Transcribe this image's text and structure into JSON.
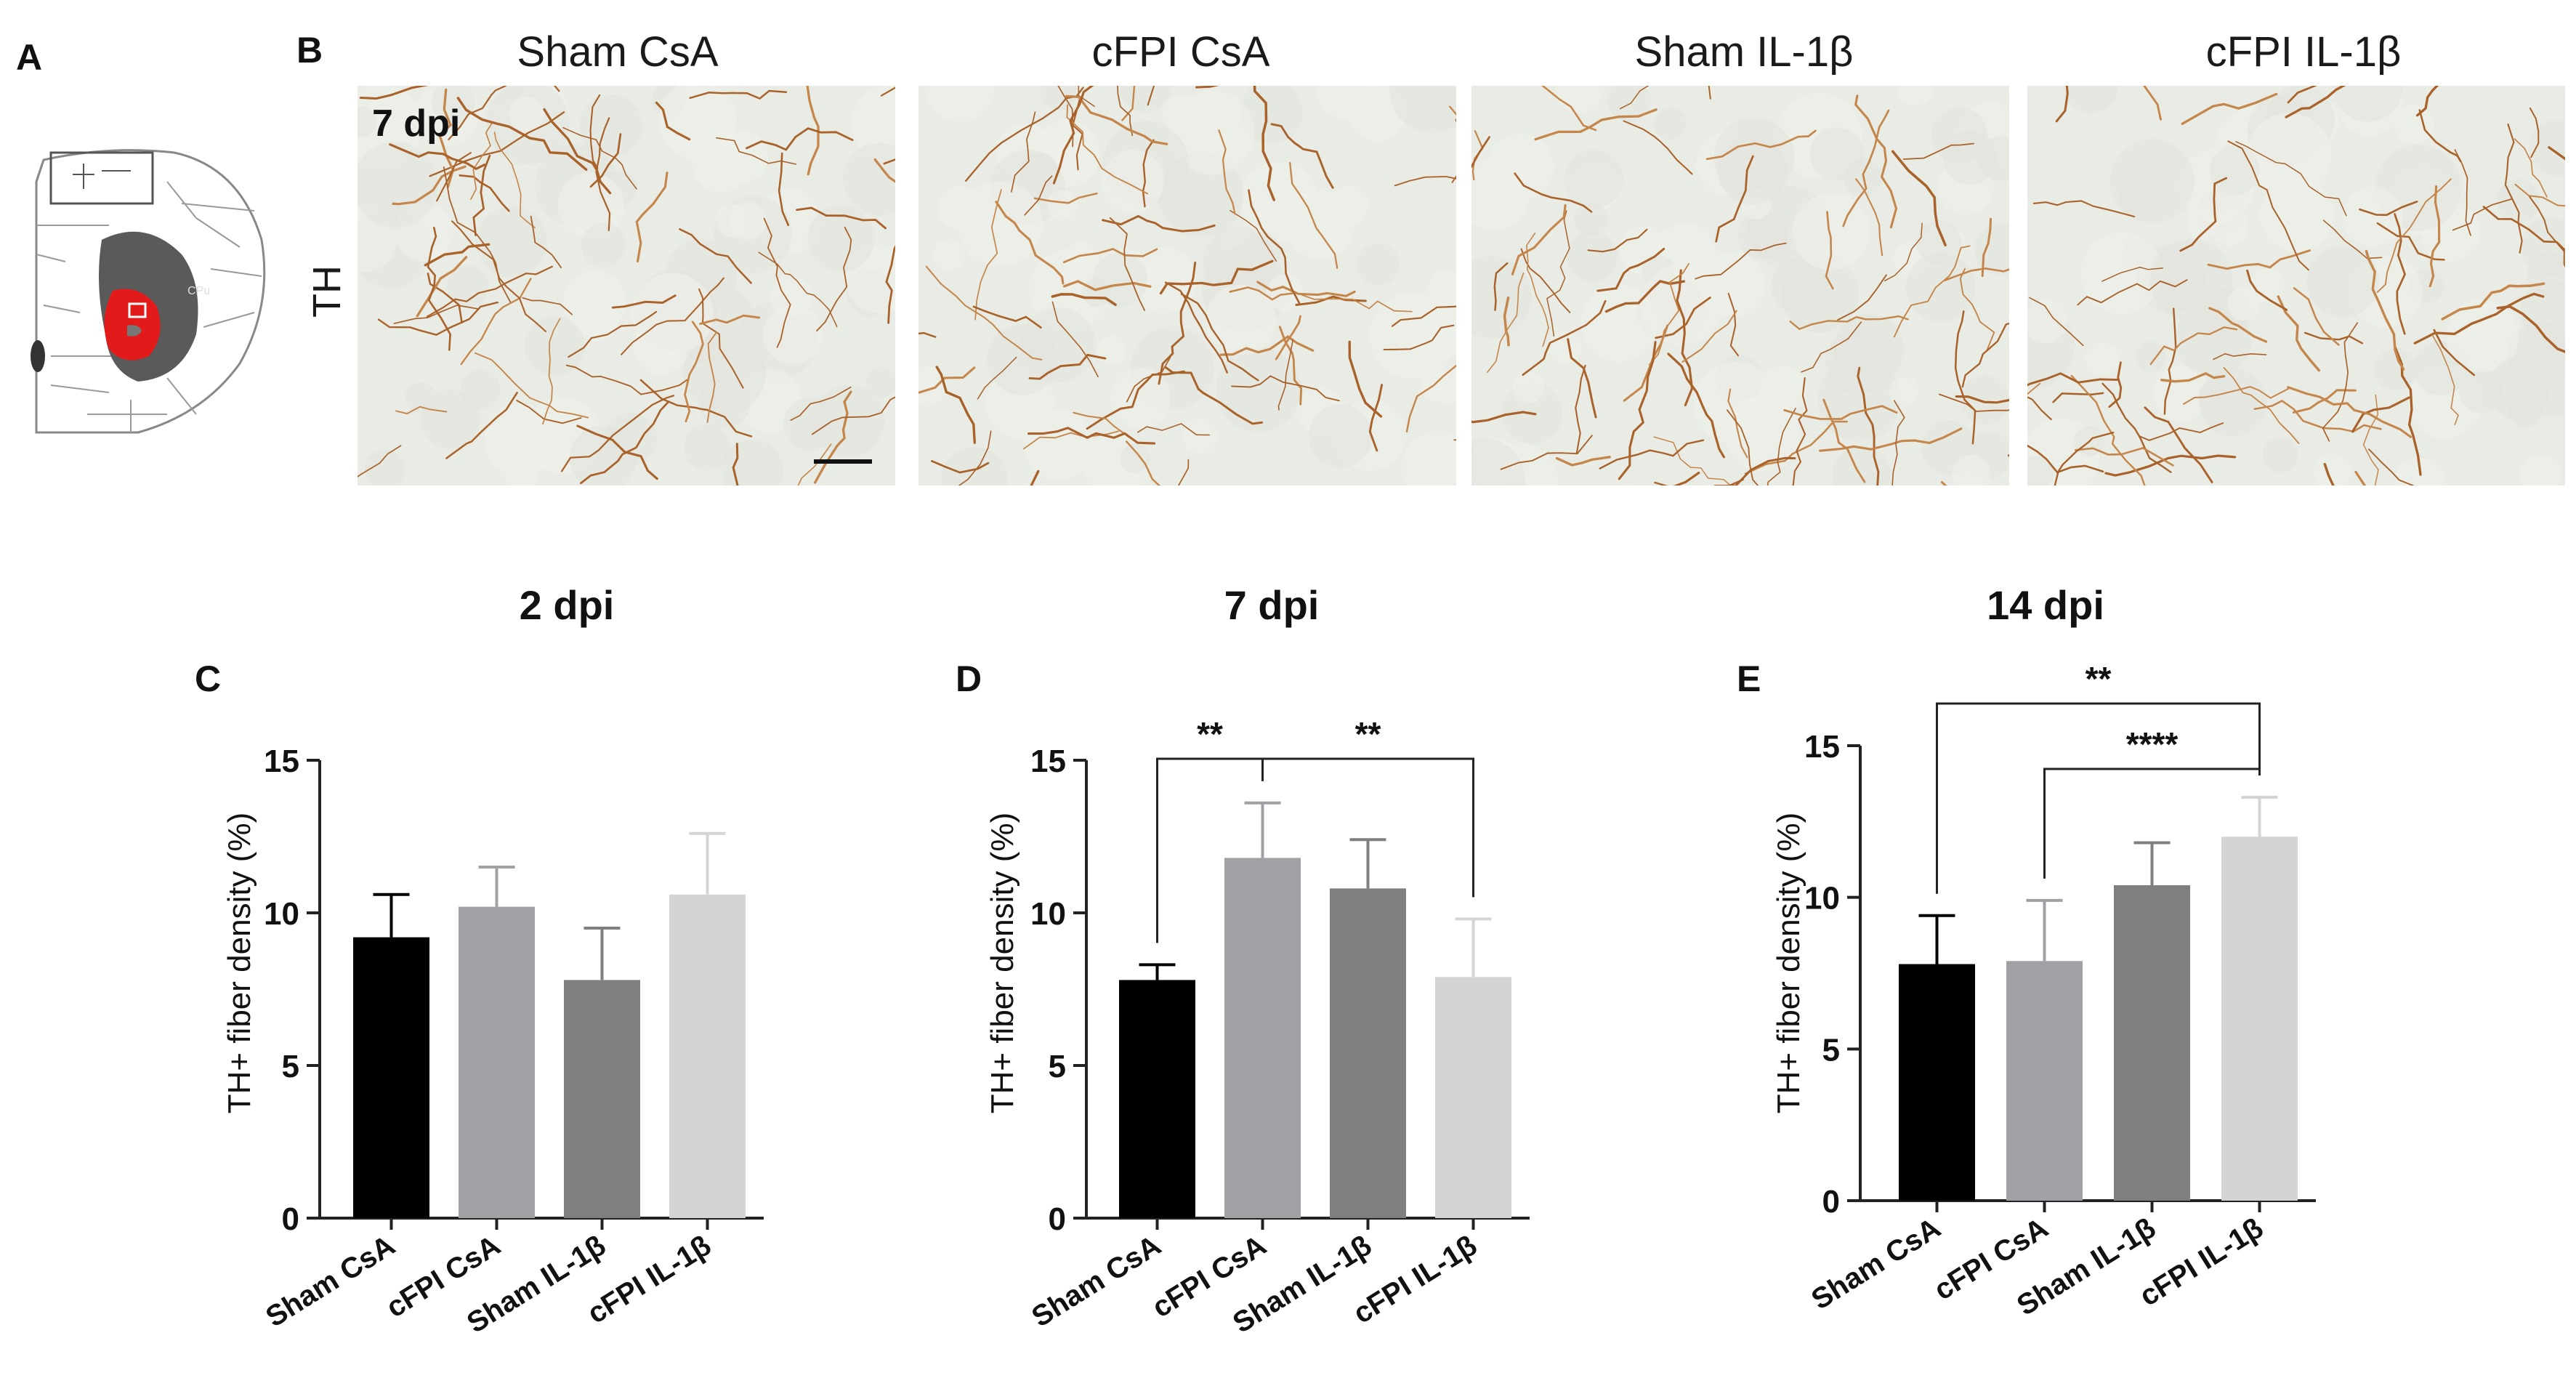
{
  "panels": {
    "A": "A",
    "B": "B",
    "C": "C",
    "D": "D",
    "E": "E"
  },
  "micrographs": {
    "row_label": "TH",
    "time_label": "7 dpi",
    "columns": [
      "Sham CsA",
      "cFPI CsA",
      "Sham IL-1β",
      "cFPI  IL-1β"
    ]
  },
  "atlas": {
    "small_label": "CPu",
    "roi_color": "#e31a1a",
    "region_color": "#5a5a5a"
  },
  "colors": {
    "Sham CsA": "#000000",
    "cFPI CsA": "#a1a1a5",
    "Sham IL-1β": "#7f7f7f",
    "cFPI IL-1β": "#d4d4d4"
  },
  "chart_data": [
    {
      "panel": "C",
      "type": "bar",
      "title": "2 dpi",
      "ylabel": "TH+ fiber density (%)",
      "ylim": [
        0,
        15
      ],
      "yticks": [
        0,
        5,
        10,
        15
      ],
      "categories": [
        "Sham CsA",
        "cFPI CsA",
        "Sham IL-1β",
        "cFPI IL-1β"
      ],
      "values": [
        9.2,
        10.2,
        7.8,
        10.6
      ],
      "errors": [
        1.4,
        1.3,
        1.7,
        2.0
      ],
      "significance": []
    },
    {
      "panel": "D",
      "type": "bar",
      "title": "7 dpi",
      "ylabel": "TH+ fiber density (%)",
      "ylim": [
        0,
        15
      ],
      "yticks": [
        0,
        5,
        10,
        15
      ],
      "categories": [
        "Sham CsA",
        "cFPI CsA",
        "Sham IL-1β",
        "cFPI IL-1β"
      ],
      "values": [
        7.8,
        11.8,
        10.8,
        7.9
      ],
      "errors": [
        0.5,
        1.8,
        1.6,
        1.9
      ],
      "significance": [
        {
          "from": 0,
          "to": 1,
          "label": "**"
        },
        {
          "from": 1,
          "to": 3,
          "label": "**"
        }
      ]
    },
    {
      "panel": "E",
      "type": "bar",
      "title": "14 dpi",
      "ylabel": "TH+ fiber density (%)",
      "ylim": [
        0,
        15
      ],
      "yticks": [
        0,
        5,
        10,
        15
      ],
      "categories": [
        "Sham CsA",
        "cFPI CsA",
        "Sham IL-1β",
        "cFPI IL-1β"
      ],
      "values": [
        7.8,
        7.9,
        10.4,
        12.0
      ],
      "errors": [
        1.6,
        2.0,
        1.4,
        1.3
      ],
      "significance": [
        {
          "from": 0,
          "to": 3,
          "label": "**"
        },
        {
          "from": 1,
          "to": 3,
          "label": "****"
        }
      ]
    }
  ]
}
